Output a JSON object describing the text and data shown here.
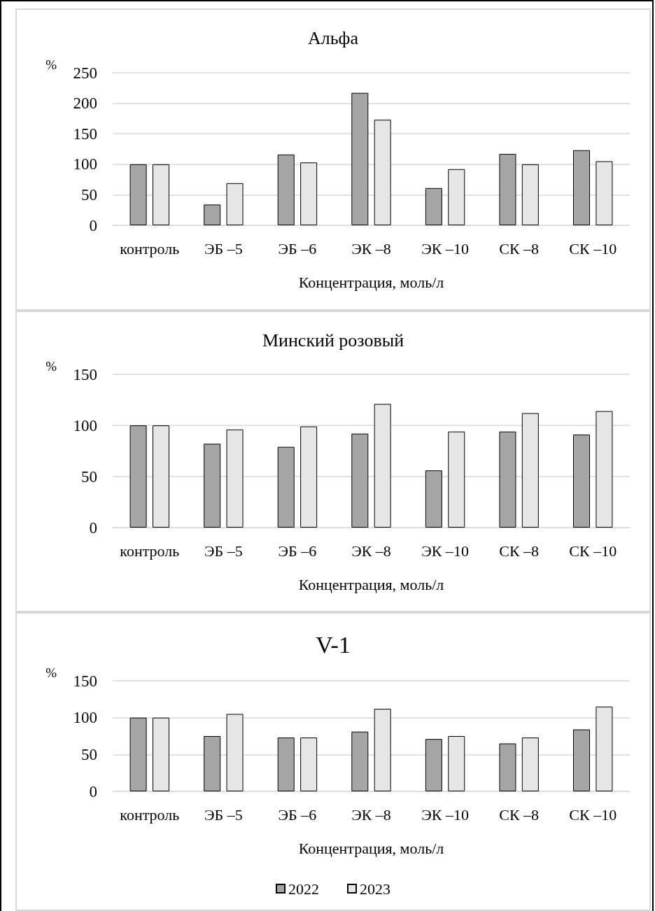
{
  "chart_data": [
    {
      "type": "bar",
      "title": "Альфа",
      "ylabel": "%",
      "xlabel": "Концентрация, моль/л",
      "categories": [
        "контроль",
        "ЭБ –5",
        "ЭБ –6",
        "ЭК –8",
        "ЭК –10",
        "СК –8",
        "СК –10"
      ],
      "series": [
        {
          "color": "#a6a6a6",
          "values": [
            100,
            34,
            116,
            217,
            61,
            117,
            123
          ]
        },
        {
          "color": "#e6e6e6",
          "values": [
            100,
            69,
            103,
            173,
            92,
            100,
            105
          ]
        }
      ],
      "ylim": [
        0,
        250
      ],
      "yticks": [
        0,
        50,
        100,
        150,
        200,
        250
      ],
      "grid": "y",
      "legend": false
    },
    {
      "type": "bar",
      "title": "Минский розовый",
      "ylabel": "%",
      "xlabel": "Концентрация, моль/л",
      "categories": [
        "контроль",
        "ЭБ –5",
        "ЭБ –6",
        "ЭК –8",
        "ЭК –10",
        "СК –8",
        "СК –10"
      ],
      "series": [
        {
          "color": "#a6a6a6",
          "values": [
            100,
            82,
            79,
            92,
            56,
            94,
            91
          ]
        },
        {
          "color": "#e6e6e6",
          "values": [
            100,
            96,
            99,
            121,
            94,
            112,
            114
          ]
        }
      ],
      "ylim": [
        0,
        150
      ],
      "yticks": [
        0,
        50,
        100,
        150
      ],
      "grid": "y",
      "legend": false
    },
    {
      "type": "bar",
      "title": "V-1",
      "ylabel": "%",
      "xlabel": "Концентрация, моль/л",
      "categories": [
        "контроль",
        "ЭБ –5",
        "ЭБ –6",
        "ЭК –8",
        "ЭК –10",
        "СК –8",
        "СК –10"
      ],
      "series": [
        {
          "name": "2022",
          "color": "#a6a6a6",
          "values": [
            100,
            75,
            73,
            81,
            71,
            65,
            84
          ]
        },
        {
          "name": "2023",
          "color": "#e6e6e6",
          "values": [
            100,
            105,
            73,
            112,
            75,
            73,
            115
          ]
        }
      ],
      "ylim": [
        0,
        150
      ],
      "yticks": [
        0,
        50,
        100,
        150
      ],
      "grid": "y",
      "legend": "bottom"
    }
  ]
}
